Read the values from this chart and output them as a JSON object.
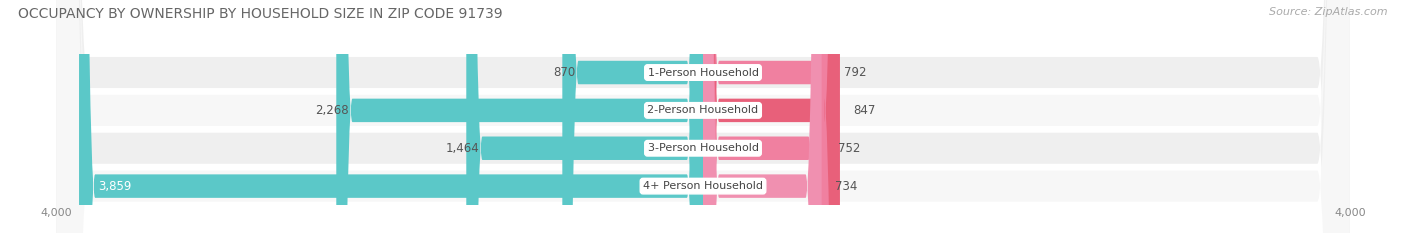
{
  "title": "OCCUPANCY BY OWNERSHIP BY HOUSEHOLD SIZE IN ZIP CODE 91739",
  "source": "Source: ZipAtlas.com",
  "categories": [
    "1-Person Household",
    "2-Person Household",
    "3-Person Household",
    "4+ Person Household"
  ],
  "owner_values": [
    870,
    2268,
    1464,
    3859
  ],
  "renter_values": [
    792,
    847,
    752,
    734
  ],
  "owner_color": "#5BC8C8",
  "renter_color": "#F07090",
  "renter_color_row2": "#E8607A",
  "row_bg_color_odd": "#EFEFEF",
  "row_bg_color_even": "#F7F7F7",
  "axis_max": 4000,
  "title_fontsize": 10,
  "source_fontsize": 8,
  "value_fontsize": 8.5,
  "cat_fontsize": 8,
  "tick_fontsize": 8,
  "legend_fontsize": 8.5,
  "bar_height": 0.62,
  "background_color": "#FFFFFF",
  "renter_colors": [
    "#F080A0",
    "#E8607A",
    "#F080A0",
    "#F090B0"
  ]
}
